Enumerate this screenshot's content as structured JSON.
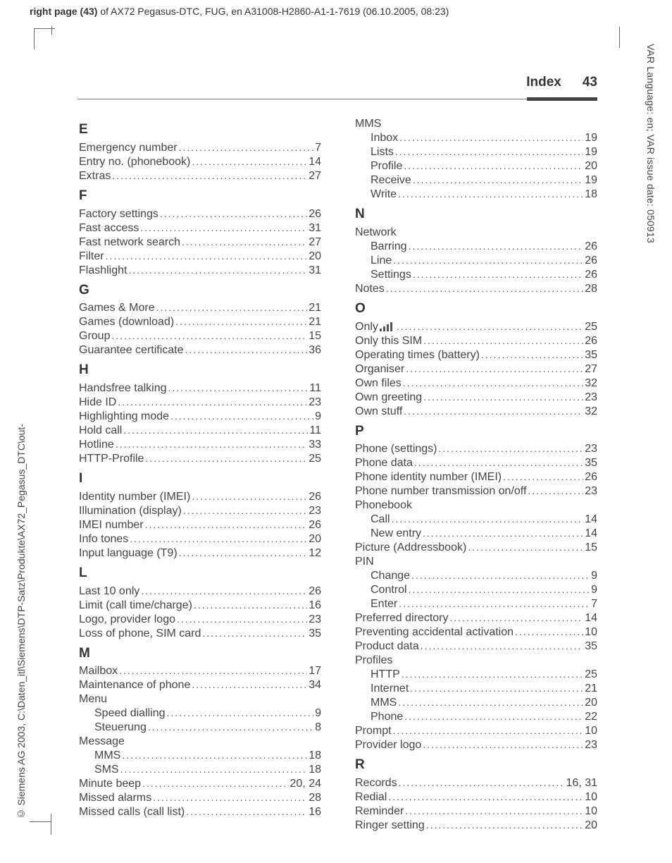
{
  "meta": {
    "top_header_bold": "right page (43)",
    "top_header_rest": " of AX72 Pegasus-DTC, FUG, en A31008-H2860-A1-1-7619 (06.10.2005, 08:23)",
    "side_right": "VAR Language: en; VAR issue date: 050913",
    "side_left": "© Siemens AG 2003, C:\\Daten_itl\\Siemens\\DTP-Satz\\Produkte\\AX72_Pegasus_DTC\\out-",
    "page_title": "Index",
    "page_number": "43"
  },
  "left": [
    {
      "type": "letter",
      "text": "E"
    },
    {
      "label": "Emergency number",
      "page": "7"
    },
    {
      "label": "Entry no. (phonebook)",
      "page": "14"
    },
    {
      "label": "Extras",
      "page": "27"
    },
    {
      "type": "letter",
      "text": "F"
    },
    {
      "label": "Factory settings",
      "page": "26"
    },
    {
      "label": "Fast access",
      "page": "31"
    },
    {
      "label": "Fast network search",
      "page": "27"
    },
    {
      "label": "Filter",
      "page": "20"
    },
    {
      "label": "Flashlight",
      "page": "31"
    },
    {
      "type": "letter",
      "text": "G"
    },
    {
      "label": "Games & More",
      "page": "21"
    },
    {
      "label": "Games (download)",
      "page": "21"
    },
    {
      "label": "Group",
      "page": "15"
    },
    {
      "label": "Guarantee certificate",
      "page": "36"
    },
    {
      "type": "letter",
      "text": "H"
    },
    {
      "label": "Handsfree talking",
      "page": "11"
    },
    {
      "label": "Hide ID",
      "page": "23"
    },
    {
      "label": "Highlighting mode",
      "page": "9"
    },
    {
      "label": "Hold call",
      "page": "11"
    },
    {
      "label": "Hotline",
      "page": "33"
    },
    {
      "label": "HTTP-Profile",
      "page": "25"
    },
    {
      "type": "letter",
      "text": "I"
    },
    {
      "label": "Identity number (IMEI)",
      "page": "26"
    },
    {
      "label": "Illumination (display)",
      "page": "23"
    },
    {
      "label": "IMEI number",
      "page": "26"
    },
    {
      "label": "Info tones",
      "page": "20"
    },
    {
      "label": "Input language (T9)",
      "page": "12"
    },
    {
      "type": "letter",
      "text": "L"
    },
    {
      "label": "Last 10 only",
      "page": "26"
    },
    {
      "label": "Limit (call time/charge)",
      "page": "16"
    },
    {
      "label": "Logo, provider logo",
      "page": "23"
    },
    {
      "label": "Loss of phone, SIM card",
      "page": "35"
    },
    {
      "type": "letter",
      "text": "M"
    },
    {
      "label": "Mailbox",
      "page": "17"
    },
    {
      "label": "Maintenance of phone",
      "page": "34"
    },
    {
      "type": "heading",
      "label": "Menu"
    },
    {
      "sub": true,
      "label": "Speed dialling",
      "page": "9"
    },
    {
      "sub": true,
      "label": "Steuerung",
      "page": "8"
    },
    {
      "type": "heading",
      "label": "Message"
    },
    {
      "sub": true,
      "label": "MMS",
      "page": "18"
    },
    {
      "sub": true,
      "label": "SMS",
      "page": "18"
    },
    {
      "label": "Minute beep",
      "page": "20, 24"
    },
    {
      "label": "Missed alarms",
      "page": "28"
    },
    {
      "label": "Missed calls (call list)",
      "page": "16"
    }
  ],
  "right": [
    {
      "type": "heading",
      "label": "MMS"
    },
    {
      "sub": true,
      "label": "Inbox",
      "page": "19"
    },
    {
      "sub": true,
      "label": "Lists",
      "page": "19"
    },
    {
      "sub": true,
      "label": "Profile",
      "page": "20"
    },
    {
      "sub": true,
      "label": "Receive",
      "page": "19"
    },
    {
      "sub": true,
      "label": "Write",
      "page": "18"
    },
    {
      "type": "letter",
      "text": "N"
    },
    {
      "type": "heading",
      "label": "Network"
    },
    {
      "sub": true,
      "label": "Barring",
      "page": "26"
    },
    {
      "sub": true,
      "label": "Line",
      "page": "26"
    },
    {
      "sub": true,
      "label": "Settings",
      "page": "26"
    },
    {
      "label": "Notes",
      "page": "28"
    },
    {
      "type": "letter",
      "text": "O"
    },
    {
      "label": "Only",
      "icon": "signal",
      "page": "25"
    },
    {
      "label": "Only this SIM",
      "page": "26"
    },
    {
      "label": "Operating times (battery)",
      "page": "35"
    },
    {
      "label": "Organiser",
      "page": "27"
    },
    {
      "label": "Own files",
      "page": "32"
    },
    {
      "label": "Own greeting",
      "page": "23"
    },
    {
      "label": "Own stuff",
      "page": "32"
    },
    {
      "type": "letter",
      "text": "P"
    },
    {
      "label": "Phone (settings)",
      "page": "23"
    },
    {
      "label": "Phone data",
      "page": "35"
    },
    {
      "label": "Phone identity number (IMEI)",
      "page": "26"
    },
    {
      "label": "Phone number transmission on/off",
      "page": "23"
    },
    {
      "type": "heading",
      "label": "Phonebook"
    },
    {
      "sub": true,
      "label": "Call",
      "page": "14"
    },
    {
      "sub": true,
      "label": "New entry",
      "page": "14"
    },
    {
      "label": "Picture (Addressbook)",
      "page": "15"
    },
    {
      "type": "heading",
      "label": "PIN"
    },
    {
      "sub": true,
      "label": "Change",
      "page": "9"
    },
    {
      "sub": true,
      "label": "Control",
      "page": "9"
    },
    {
      "sub": true,
      "label": "Enter",
      "page": "7"
    },
    {
      "label": "Preferred directory",
      "page": "14"
    },
    {
      "label": "Preventing accidental activation",
      "page": "10"
    },
    {
      "label": "Product data",
      "page": "35"
    },
    {
      "type": "heading",
      "label": "Profiles"
    },
    {
      "sub": true,
      "label": "HTTP",
      "page": "25"
    },
    {
      "sub": true,
      "label": "Internet",
      "page": "21"
    },
    {
      "sub": true,
      "label": "MMS",
      "page": "20"
    },
    {
      "sub": true,
      "label": "Phone",
      "page": "22"
    },
    {
      "label": "Prompt",
      "page": "10"
    },
    {
      "label": "Provider logo",
      "page": "23"
    },
    {
      "type": "letter",
      "text": "R"
    },
    {
      "label": "Records",
      "page": "16, 31"
    },
    {
      "label": "Redial",
      "page": "10"
    },
    {
      "label": "Reminder",
      "page": "10"
    },
    {
      "label": "Ringer setting",
      "page": "20"
    }
  ]
}
